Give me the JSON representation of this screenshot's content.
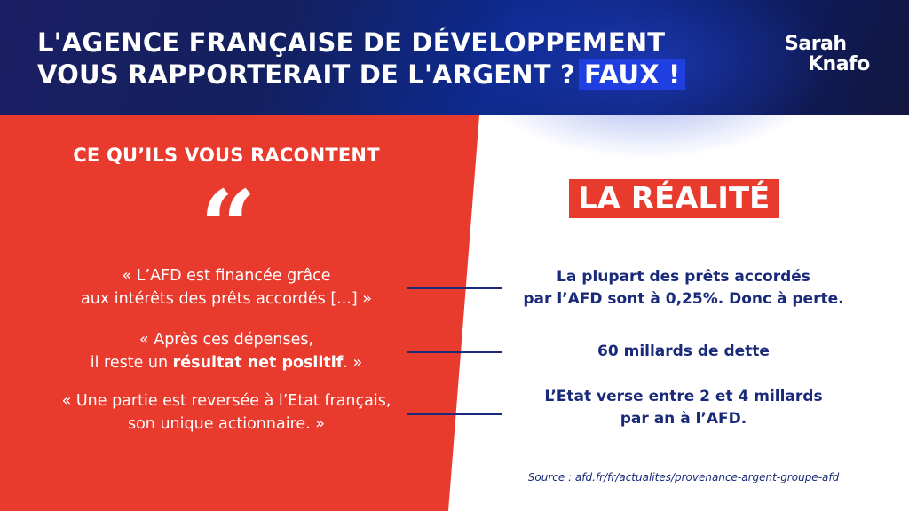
{
  "header": {
    "title_line1": "L'AGENCE FRANÇAISE DE DÉVELOPPEMENT",
    "title_line2": "VOUS RAPPORTERAIT DE L'ARGENT ?",
    "title_highlight": "FAUX !",
    "brand_line1": "Sarah",
    "brand_line2": "Knafo"
  },
  "left": {
    "heading": "CE QU’ILS VOUS RACONTENT",
    "quote_mark": "“",
    "claims": [
      {
        "line1": "« L’AFD est financée grâce",
        "line2": "aux intérêts des prêts accordés [...] »"
      },
      {
        "line1": "« Après ces dépenses,",
        "line2_pre": "il reste un ",
        "line2_bold": "résultat net posiitif",
        "line2_post": ". »"
      },
      {
        "line1": "« Une partie est reversée à l’Etat français,",
        "line2": "son unique actionnaire. »"
      }
    ]
  },
  "right": {
    "heading": "LA RÉALITÉ",
    "facts": [
      {
        "line1": "La plupart des prêts accordés",
        "line2": "par l’AFD sont à 0,25%. Donc à perte."
      },
      {
        "line1": "60 millards de dette"
      },
      {
        "line1": "L’Etat verse entre 2 et 4 millards",
        "line2": "par an à l’AFD."
      }
    ],
    "source": "Source : afd.fr/fr/actualites/provenance-argent-groupe-afd"
  },
  "colors": {
    "red": "#e93a2e",
    "navy": "#1a2a7a",
    "highlight_blue": "#1f3fe0"
  }
}
